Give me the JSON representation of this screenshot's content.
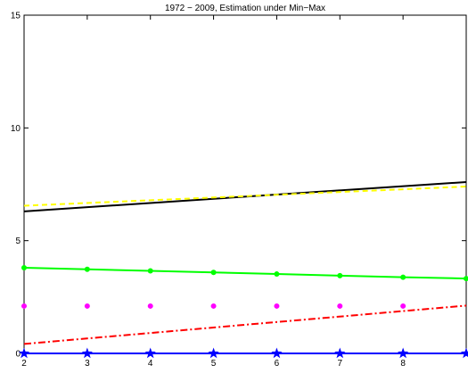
{
  "chart_data": {
    "type": "line",
    "title": "1972 − 2009, Estimation under Min−Max",
    "xlabel": "",
    "ylabel": "",
    "xlim": [
      2,
      9
    ],
    "ylim": [
      0,
      15
    ],
    "x_ticks": [
      "2",
      "3",
      "4",
      "5",
      "6",
      "7",
      "8"
    ],
    "y_ticks": [
      "0",
      "5",
      "10",
      "15"
    ],
    "grid": false,
    "series": [
      {
        "color": "#000000",
        "style": "solid",
        "marker": "none",
        "x": [
          2,
          9
        ],
        "y": [
          6.3,
          7.6
        ]
      },
      {
        "color": "#ffff00",
        "style": "dashed",
        "marker": "none",
        "x": [
          2,
          9
        ],
        "y": [
          6.55,
          7.4
        ]
      },
      {
        "color": "#00ff00",
        "style": "solid",
        "marker": "circle",
        "x": [
          2,
          3,
          4,
          5,
          6,
          7,
          8,
          9
        ],
        "y": [
          3.8,
          3.73,
          3.66,
          3.59,
          3.52,
          3.45,
          3.38,
          3.32
        ]
      },
      {
        "color": "#ff00ff",
        "style": "none",
        "marker": "circle",
        "x": [
          2,
          3,
          4,
          5,
          6,
          7,
          8
        ],
        "y": [
          2.1,
          2.1,
          2.1,
          2.1,
          2.1,
          2.1,
          2.1
        ]
      },
      {
        "color": "#ff0000",
        "style": "dashdot",
        "marker": "none",
        "x": [
          2,
          9
        ],
        "y": [
          0.42,
          2.12
        ]
      },
      {
        "color": "#0000ff",
        "style": "solid",
        "marker": "star",
        "x": [
          2,
          3,
          4,
          5,
          6,
          7,
          8,
          9
        ],
        "y": [
          0,
          0,
          0,
          0,
          0,
          0,
          0,
          0
        ]
      }
    ]
  }
}
